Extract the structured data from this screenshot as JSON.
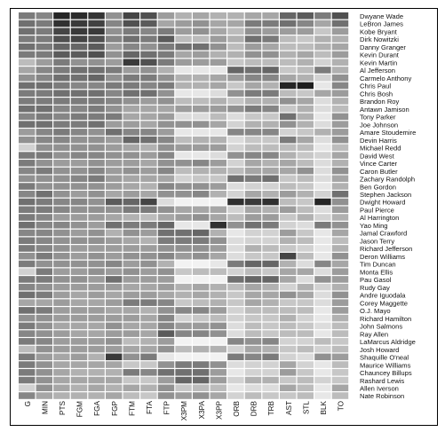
{
  "chart_data": {
    "type": "heatmap",
    "title": "",
    "xlabel": "",
    "ylabel": "",
    "color_scale": {
      "low": "#f2f2f2",
      "high": "#1a1a1a"
    },
    "grid": false,
    "columns": [
      "G",
      "MIN",
      "PTS",
      "FGM",
      "FGA",
      "FGP",
      "FTM",
      "FTA",
      "FTP",
      "X3PM",
      "X3PA",
      "X3PP",
      "ORB",
      "DRB",
      "TRB",
      "AST",
      "STL",
      "BLK",
      "TO"
    ],
    "rows": [
      "Dwyane Wade",
      "LeBron James",
      "Kobe Bryant",
      "Dirk Nowitzki",
      "Danny Granger",
      "Kevin Durant",
      "Kevin Martin",
      "Al Jefferson",
      "Carmelo Anthony",
      "Chris Paul",
      "Chris Bosh",
      "Brandon Roy",
      "Antawn Jamison",
      "Tony Parker",
      "Joe Johnson",
      "Amare Stoudemire",
      "Devin Harris",
      "Michael Redd",
      "David West",
      "Vince Carter",
      "Caron Butler",
      "Zachary Randolph",
      "Ben Gordon",
      "Stephen Jackson",
      "Dwight Howard",
      "Paul Pierce",
      "Al Harrington",
      "Yao Ming",
      "Jamal Crawford",
      "Jason Terry",
      "Richard Jefferson",
      "Deron Williams",
      "Tim Duncan",
      "Monta Ellis",
      "Pau Gasol",
      "Rudy Gay",
      "Andre Iguodala",
      "Corey Maggette",
      "O.J. Mayo",
      "Richard Hamilton",
      "John Salmons",
      "Ray Allen",
      "LaMarcus Aldridge",
      "Josh Howard",
      "Shaquille O'neal",
      "Maurice Williams",
      "Chauncey Billups",
      "Rashard Lewis",
      "Allen Iverson",
      "Nate Robinson"
    ],
    "values": [
      [
        0.55,
        0.5,
        0.95,
        0.92,
        0.88,
        0.45,
        0.8,
        0.75,
        0.4,
        0.3,
        0.35,
        0.3,
        0.3,
        0.35,
        0.35,
        0.65,
        0.7,
        0.55,
        0.75
      ],
      [
        0.6,
        0.55,
        0.9,
        0.85,
        0.82,
        0.5,
        0.75,
        0.7,
        0.35,
        0.4,
        0.45,
        0.35,
        0.35,
        0.55,
        0.55,
        0.6,
        0.5,
        0.35,
        0.6
      ],
      [
        0.6,
        0.55,
        0.8,
        0.85,
        0.85,
        0.45,
        0.55,
        0.5,
        0.55,
        0.4,
        0.45,
        0.35,
        0.25,
        0.45,
        0.4,
        0.4,
        0.4,
        0.2,
        0.4
      ],
      [
        0.55,
        0.55,
        0.75,
        0.8,
        0.75,
        0.5,
        0.6,
        0.55,
        0.7,
        0.25,
        0.25,
        0.4,
        0.3,
        0.6,
        0.55,
        0.25,
        0.2,
        0.3,
        0.3
      ],
      [
        0.6,
        0.55,
        0.65,
        0.65,
        0.7,
        0.4,
        0.5,
        0.45,
        0.55,
        0.6,
        0.6,
        0.45,
        0.25,
        0.4,
        0.35,
        0.25,
        0.25,
        0.3,
        0.35
      ],
      [
        0.55,
        0.55,
        0.7,
        0.7,
        0.75,
        0.45,
        0.65,
        0.6,
        0.55,
        0.35,
        0.4,
        0.3,
        0.3,
        0.45,
        0.45,
        0.3,
        0.35,
        0.25,
        0.4
      ],
      [
        0.25,
        0.4,
        0.55,
        0.45,
        0.45,
        0.4,
        0.85,
        0.75,
        0.55,
        0.4,
        0.4,
        0.4,
        0.2,
        0.25,
        0.25,
        0.25,
        0.3,
        0.15,
        0.3
      ],
      [
        0.35,
        0.5,
        0.55,
        0.6,
        0.6,
        0.55,
        0.4,
        0.45,
        0.3,
        0.05,
        0.05,
        0.05,
        0.65,
        0.6,
        0.65,
        0.2,
        0.25,
        0.55,
        0.3
      ],
      [
        0.45,
        0.5,
        0.6,
        0.6,
        0.65,
        0.45,
        0.55,
        0.55,
        0.45,
        0.3,
        0.3,
        0.35,
        0.4,
        0.5,
        0.5,
        0.35,
        0.3,
        0.15,
        0.45
      ],
      [
        0.6,
        0.6,
        0.55,
        0.5,
        0.5,
        0.55,
        0.55,
        0.5,
        0.55,
        0.3,
        0.3,
        0.35,
        0.2,
        0.35,
        0.3,
        0.95,
        0.98,
        0.05,
        0.5
      ],
      [
        0.55,
        0.55,
        0.6,
        0.6,
        0.6,
        0.5,
        0.6,
        0.6,
        0.45,
        0.05,
        0.05,
        0.1,
        0.45,
        0.55,
        0.55,
        0.25,
        0.2,
        0.35,
        0.4
      ],
      [
        0.55,
        0.55,
        0.55,
        0.55,
        0.55,
        0.5,
        0.45,
        0.4,
        0.45,
        0.25,
        0.25,
        0.3,
        0.2,
        0.3,
        0.3,
        0.45,
        0.35,
        0.1,
        0.3
      ],
      [
        0.6,
        0.6,
        0.5,
        0.5,
        0.55,
        0.45,
        0.35,
        0.35,
        0.35,
        0.4,
        0.4,
        0.4,
        0.45,
        0.55,
        0.5,
        0.2,
        0.3,
        0.1,
        0.25
      ],
      [
        0.5,
        0.55,
        0.5,
        0.55,
        0.55,
        0.55,
        0.35,
        0.35,
        0.4,
        0.1,
        0.1,
        0.25,
        0.1,
        0.2,
        0.2,
        0.6,
        0.3,
        0.05,
        0.45
      ],
      [
        0.6,
        0.6,
        0.55,
        0.55,
        0.6,
        0.4,
        0.4,
        0.35,
        0.45,
        0.45,
        0.45,
        0.35,
        0.15,
        0.3,
        0.3,
        0.45,
        0.3,
        0.1,
        0.4
      ],
      [
        0.4,
        0.5,
        0.55,
        0.5,
        0.45,
        0.6,
        0.5,
        0.5,
        0.4,
        0.05,
        0.05,
        0.05,
        0.5,
        0.5,
        0.5,
        0.15,
        0.2,
        0.3,
        0.4
      ],
      [
        0.45,
        0.5,
        0.5,
        0.45,
        0.45,
        0.4,
        0.65,
        0.6,
        0.5,
        0.25,
        0.3,
        0.3,
        0.1,
        0.2,
        0.2,
        0.55,
        0.35,
        0.1,
        0.45
      ],
      [
        0.15,
        0.45,
        0.45,
        0.45,
        0.45,
        0.4,
        0.35,
        0.3,
        0.45,
        0.4,
        0.4,
        0.4,
        0.15,
        0.25,
        0.25,
        0.25,
        0.25,
        0.05,
        0.25
      ],
      [
        0.55,
        0.55,
        0.45,
        0.5,
        0.5,
        0.45,
        0.45,
        0.4,
        0.5,
        0.05,
        0.05,
        0.1,
        0.45,
        0.5,
        0.5,
        0.3,
        0.2,
        0.15,
        0.35
      ],
      [
        0.55,
        0.45,
        0.4,
        0.4,
        0.45,
        0.4,
        0.4,
        0.35,
        0.45,
        0.45,
        0.5,
        0.4,
        0.15,
        0.35,
        0.3,
        0.35,
        0.25,
        0.1,
        0.3
      ],
      [
        0.5,
        0.55,
        0.45,
        0.45,
        0.5,
        0.4,
        0.45,
        0.4,
        0.5,
        0.25,
        0.3,
        0.3,
        0.25,
        0.35,
        0.35,
        0.35,
        0.45,
        0.1,
        0.45
      ],
      [
        0.45,
        0.45,
        0.45,
        0.5,
        0.55,
        0.4,
        0.35,
        0.35,
        0.35,
        0.15,
        0.2,
        0.2,
        0.6,
        0.55,
        0.6,
        0.2,
        0.25,
        0.1,
        0.35
      ],
      [
        0.55,
        0.45,
        0.45,
        0.45,
        0.45,
        0.4,
        0.35,
        0.3,
        0.5,
        0.45,
        0.45,
        0.4,
        0.1,
        0.15,
        0.15,
        0.25,
        0.2,
        0.05,
        0.3
      ],
      [
        0.5,
        0.6,
        0.45,
        0.4,
        0.45,
        0.35,
        0.4,
        0.35,
        0.45,
        0.45,
        0.5,
        0.3,
        0.15,
        0.35,
        0.3,
        0.4,
        0.3,
        0.15,
        0.6
      ],
      [
        0.6,
        0.55,
        0.5,
        0.5,
        0.45,
        0.7,
        0.65,
        0.8,
        0.1,
        0.0,
        0.0,
        0.0,
        0.9,
        0.85,
        0.9,
        0.25,
        0.2,
        0.95,
        0.45
      ],
      [
        0.55,
        0.55,
        0.5,
        0.45,
        0.45,
        0.45,
        0.55,
        0.55,
        0.45,
        0.35,
        0.35,
        0.35,
        0.15,
        0.35,
        0.3,
        0.4,
        0.25,
        0.1,
        0.4
      ],
      [
        0.55,
        0.5,
        0.4,
        0.4,
        0.4,
        0.35,
        0.3,
        0.25,
        0.35,
        0.4,
        0.45,
        0.35,
        0.25,
        0.4,
        0.4,
        0.2,
        0.3,
        0.15,
        0.3
      ],
      [
        0.6,
        0.5,
        0.5,
        0.45,
        0.4,
        0.6,
        0.55,
        0.55,
        0.65,
        0.05,
        0.05,
        0.9,
        0.45,
        0.6,
        0.55,
        0.15,
        0.1,
        0.55,
        0.45
      ],
      [
        0.5,
        0.5,
        0.45,
        0.4,
        0.45,
        0.3,
        0.45,
        0.4,
        0.6,
        0.6,
        0.65,
        0.3,
        0.05,
        0.15,
        0.15,
        0.4,
        0.2,
        0.05,
        0.35
      ],
      [
        0.55,
        0.5,
        0.45,
        0.45,
        0.45,
        0.4,
        0.35,
        0.3,
        0.55,
        0.55,
        0.55,
        0.45,
        0.1,
        0.15,
        0.15,
        0.3,
        0.25,
        0.05,
        0.25
      ],
      [
        0.55,
        0.5,
        0.45,
        0.4,
        0.4,
        0.4,
        0.4,
        0.4,
        0.45,
        0.45,
        0.45,
        0.4,
        0.1,
        0.3,
        0.25,
        0.2,
        0.15,
        0.05,
        0.3
      ],
      [
        0.45,
        0.55,
        0.45,
        0.4,
        0.45,
        0.4,
        0.45,
        0.45,
        0.5,
        0.4,
        0.45,
        0.35,
        0.1,
        0.2,
        0.2,
        0.8,
        0.25,
        0.05,
        0.45
      ],
      [
        0.55,
        0.45,
        0.45,
        0.45,
        0.45,
        0.5,
        0.4,
        0.45,
        0.3,
        0.0,
        0.0,
        0.05,
        0.55,
        0.65,
        0.65,
        0.3,
        0.1,
        0.5,
        0.35
      ],
      [
        0.15,
        0.55,
        0.4,
        0.4,
        0.45,
        0.4,
        0.45,
        0.4,
        0.45,
        0.2,
        0.25,
        0.25,
        0.15,
        0.25,
        0.2,
        0.35,
        0.35,
        0.1,
        0.4
      ],
      [
        0.55,
        0.55,
        0.45,
        0.45,
        0.4,
        0.6,
        0.4,
        0.4,
        0.4,
        0.0,
        0.0,
        0.0,
        0.6,
        0.65,
        0.65,
        0.35,
        0.1,
        0.45,
        0.4
      ],
      [
        0.5,
        0.45,
        0.4,
        0.4,
        0.4,
        0.4,
        0.35,
        0.35,
        0.4,
        0.3,
        0.35,
        0.3,
        0.25,
        0.35,
        0.3,
        0.15,
        0.3,
        0.15,
        0.3
      ],
      [
        0.6,
        0.55,
        0.4,
        0.35,
        0.4,
        0.35,
        0.4,
        0.4,
        0.35,
        0.3,
        0.35,
        0.3,
        0.2,
        0.35,
        0.35,
        0.45,
        0.35,
        0.1,
        0.45
      ],
      [
        0.35,
        0.35,
        0.4,
        0.35,
        0.35,
        0.4,
        0.55,
        0.55,
        0.5,
        0.2,
        0.25,
        0.3,
        0.2,
        0.35,
        0.3,
        0.2,
        0.2,
        0.1,
        0.4
      ],
      [
        0.6,
        0.55,
        0.4,
        0.4,
        0.4,
        0.35,
        0.35,
        0.3,
        0.45,
        0.5,
        0.5,
        0.4,
        0.15,
        0.25,
        0.25,
        0.25,
        0.25,
        0.05,
        0.4
      ],
      [
        0.45,
        0.45,
        0.4,
        0.4,
        0.4,
        0.4,
        0.4,
        0.35,
        0.5,
        0.15,
        0.2,
        0.25,
        0.15,
        0.2,
        0.2,
        0.3,
        0.15,
        0.05,
        0.3
      ],
      [
        0.55,
        0.45,
        0.35,
        0.35,
        0.35,
        0.45,
        0.35,
        0.35,
        0.5,
        0.4,
        0.4,
        0.45,
        0.1,
        0.25,
        0.2,
        0.25,
        0.2,
        0.1,
        0.25
      ],
      [
        0.5,
        0.45,
        0.4,
        0.35,
        0.35,
        0.4,
        0.4,
        0.35,
        0.7,
        0.5,
        0.5,
        0.45,
        0.1,
        0.25,
        0.2,
        0.25,
        0.25,
        0.05,
        0.25
      ],
      [
        0.55,
        0.5,
        0.4,
        0.4,
        0.4,
        0.45,
        0.25,
        0.3,
        0.4,
        0.0,
        0.0,
        0.0,
        0.5,
        0.45,
        0.5,
        0.15,
        0.15,
        0.25,
        0.2
      ],
      [
        0.25,
        0.45,
        0.4,
        0.4,
        0.4,
        0.4,
        0.35,
        0.35,
        0.45,
        0.25,
        0.3,
        0.3,
        0.15,
        0.35,
        0.3,
        0.2,
        0.25,
        0.15,
        0.25
      ],
      [
        0.55,
        0.4,
        0.35,
        0.4,
        0.3,
        0.85,
        0.45,
        0.55,
        0.05,
        0.0,
        0.0,
        0.0,
        0.55,
        0.5,
        0.55,
        0.15,
        0.1,
        0.45,
        0.4
      ],
      [
        0.55,
        0.45,
        0.35,
        0.35,
        0.35,
        0.35,
        0.2,
        0.2,
        0.45,
        0.55,
        0.55,
        0.45,
        0.1,
        0.15,
        0.15,
        0.35,
        0.15,
        0.05,
        0.25
      ],
      [
        0.55,
        0.45,
        0.35,
        0.3,
        0.3,
        0.3,
        0.55,
        0.5,
        0.6,
        0.6,
        0.6,
        0.4,
        0.05,
        0.15,
        0.15,
        0.4,
        0.2,
        0.05,
        0.2
      ],
      [
        0.55,
        0.45,
        0.35,
        0.35,
        0.35,
        0.35,
        0.2,
        0.2,
        0.4,
        0.65,
        0.65,
        0.4,
        0.15,
        0.3,
        0.3,
        0.2,
        0.25,
        0.15,
        0.2
      ],
      [
        0.15,
        0.45,
        0.35,
        0.3,
        0.35,
        0.3,
        0.35,
        0.3,
        0.45,
        0.2,
        0.25,
        0.25,
        0.05,
        0.1,
        0.1,
        0.35,
        0.25,
        0.05,
        0.35
      ],
      [
        0.5,
        0.35,
        0.3,
        0.3,
        0.3,
        0.35,
        0.25,
        0.2,
        0.45,
        0.4,
        0.45,
        0.35,
        0.15,
        0.25,
        0.2,
        0.2,
        0.25,
        0.05,
        0.25
      ]
    ]
  }
}
